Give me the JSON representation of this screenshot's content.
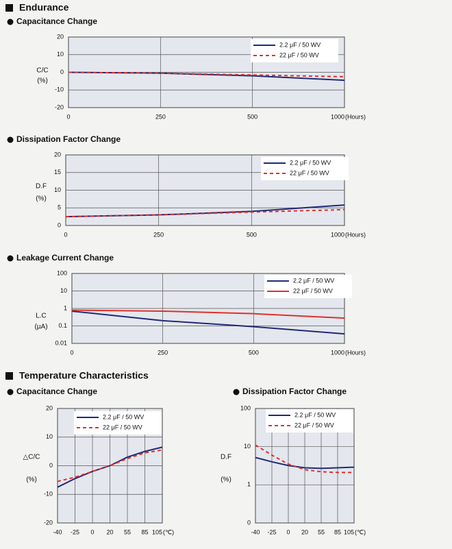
{
  "headings": [
    "Endurance",
    "Temperature Characteristics"
  ],
  "chart_data": [
    {
      "type": "line",
      "title": "Capacitance Change",
      "y_label": [
        "C/C",
        "(%)"
      ],
      "x_unit": "(Hours)",
      "categories": [
        "0",
        "250",
        "500",
        "1000"
      ],
      "ylim": [
        -20,
        20
      ],
      "yticks": [
        -20,
        -10,
        0,
        10,
        20
      ],
      "grid": true,
      "log_y": false,
      "series": [
        {
          "name": "2.2  μF / 50 WV",
          "color": "#1f2a7a",
          "line_style": "solid",
          "values": [
            0,
            -0.5,
            -2,
            -4.5
          ]
        },
        {
          "name": "22  μF / 50 WV",
          "color": "#e0302a",
          "line_style": "dashed",
          "values": [
            0,
            -0.5,
            -1.5,
            -2.5
          ]
        }
      ]
    },
    {
      "type": "line",
      "title": "Dissipation Factor Change",
      "y_label": [
        "D.F",
        "(%)"
      ],
      "x_unit": "(Hours)",
      "categories": [
        "0",
        "250",
        "500",
        "1000"
      ],
      "ylim": [
        0,
        20
      ],
      "yticks": [
        0,
        5,
        10,
        15,
        20
      ],
      "grid": true,
      "log_y": false,
      "series": [
        {
          "name": "2.2  μF / 50 WV",
          "color": "#1f2a7a",
          "line_style": "solid",
          "values": [
            2.5,
            3,
            4,
            5.8
          ]
        },
        {
          "name": "22  μF / 50 WV",
          "color": "#e0302a",
          "line_style": "dashed",
          "values": [
            2.5,
            3,
            3.8,
            4.5
          ]
        }
      ]
    },
    {
      "type": "line",
      "title": "Leakage Current Change",
      "y_label": [
        "L.C",
        "(μA)"
      ],
      "x_unit": "(Hours)",
      "categories": [
        "0",
        "250",
        "500",
        "1000"
      ],
      "ylim": [
        0.01,
        100
      ],
      "yticks": [
        0.01,
        0.1,
        1,
        10,
        100
      ],
      "grid": true,
      "log_y": true,
      "series": [
        {
          "name": "2.2  μF / 50 WV",
          "color": "#1f2a7a",
          "line_style": "solid",
          "values": [
            0.7,
            0.2,
            0.09,
            0.035
          ]
        },
        {
          "name": "22  μF / 50 WV",
          "color": "#e0302a",
          "line_style": "solid",
          "values": [
            0.8,
            0.7,
            0.5,
            0.28
          ]
        }
      ]
    },
    {
      "type": "line",
      "title": "Capacitance Change",
      "y_label": [
        "△C/C",
        "(%)"
      ],
      "x_unit": "(℃)",
      "categories": [
        "-40",
        "-25",
        "0",
        "20",
        "55",
        "85",
        "105"
      ],
      "ylim": [
        -20,
        20
      ],
      "yticks": [
        -20,
        -10,
        0,
        10,
        20
      ],
      "grid": true,
      "log_y": false,
      "series": [
        {
          "name": "2.2  μF / 50 WV",
          "color": "#1f2a7a",
          "line_style": "solid",
          "values": [
            -7.5,
            -4.5,
            -2,
            0,
            3,
            5,
            6.5
          ]
        },
        {
          "name": "22  μF / 50 WV",
          "color": "#e0302a",
          "line_style": "dashed",
          "values": [
            -5.5,
            -4,
            -2,
            0,
            2.5,
            4.5,
            5.5
          ]
        }
      ]
    },
    {
      "type": "line",
      "title": "Dissipation Factor Change",
      "y_label": [
        "D.F",
        "(%)"
      ],
      "x_unit": "(℃)",
      "categories": [
        "-40",
        "-25",
        "0",
        "20",
        "55",
        "85",
        "105"
      ],
      "ylim": [
        0.1,
        100
      ],
      "yticks": [
        {
          "value": 0.1,
          "label": "0"
        },
        1,
        10,
        100
      ],
      "grid": true,
      "log_y": true,
      "series": [
        {
          "name": "2.2  μF / 50 WV",
          "color": "#1f2a7a",
          "line_style": "solid",
          "values": [
            5.2,
            4,
            3.2,
            2.8,
            2.7,
            2.8,
            2.9
          ]
        },
        {
          "name": "22  μF / 50 WV",
          "color": "#e0302a",
          "line_style": "dashed",
          "values": [
            11,
            6,
            3.5,
            2.5,
            2.2,
            2.1,
            2.1
          ]
        }
      ]
    }
  ]
}
